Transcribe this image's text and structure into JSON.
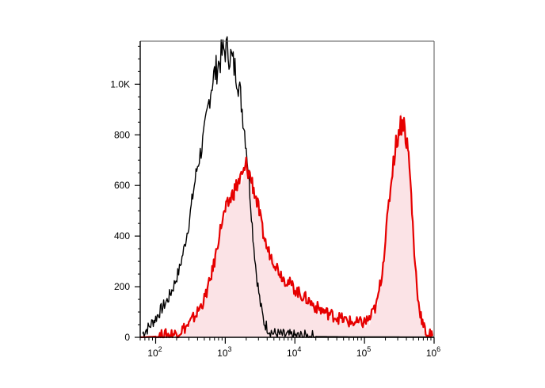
{
  "chart_data": {
    "type": "area",
    "title": "",
    "xlabel": "",
    "ylabel": "",
    "x_scale": "log",
    "xlim": [
      60,
      1000000
    ],
    "ylim": [
      0,
      1170
    ],
    "grid": false,
    "legend": "none",
    "y_ticks": [
      {
        "value": 0,
        "label": "0"
      },
      {
        "value": 200,
        "label": "200"
      },
      {
        "value": 400,
        "label": "400"
      },
      {
        "value": 600,
        "label": "600"
      },
      {
        "value": 800,
        "label": "800"
      },
      {
        "value": 1000,
        "label": "1.0K"
      }
    ],
    "x_ticks": [
      {
        "value": 100,
        "base": "10",
        "exp": "2"
      },
      {
        "value": 1000,
        "base": "10",
        "exp": "3"
      },
      {
        "value": 10000,
        "base": "10",
        "exp": "4"
      },
      {
        "value": 100000,
        "base": "10",
        "exp": "5"
      },
      {
        "value": 1000000,
        "base": "10",
        "exp": "6"
      }
    ],
    "series": [
      {
        "color": "#000000",
        "fill": "none",
        "points": [
          [
            65,
            15
          ],
          [
            70,
            25
          ],
          [
            80,
            40
          ],
          [
            90,
            60
          ],
          [
            100,
            75
          ],
          [
            120,
            110
          ],
          [
            150,
            150
          ],
          [
            180,
            200
          ],
          [
            220,
            270
          ],
          [
            260,
            360
          ],
          [
            300,
            450
          ],
          [
            350,
            580
          ],
          [
            400,
            680
          ],
          [
            450,
            740
          ],
          [
            500,
            800
          ],
          [
            550,
            880
          ],
          [
            600,
            960
          ],
          [
            650,
            1010
          ],
          [
            700,
            1040
          ],
          [
            800,
            1080
          ],
          [
            900,
            1120
          ],
          [
            1000,
            1140
          ],
          [
            1100,
            1130
          ],
          [
            1200,
            1110
          ],
          [
            1300,
            1080
          ],
          [
            1500,
            1030
          ],
          [
            1700,
            930
          ],
          [
            2000,
            760
          ],
          [
            2200,
            620
          ],
          [
            2500,
            400
          ],
          [
            2800,
            250
          ],
          [
            3200,
            130
          ],
          [
            3600,
            60
          ],
          [
            4200,
            30
          ],
          [
            5000,
            15
          ],
          [
            7000,
            8
          ],
          [
            10000,
            5
          ],
          [
            20000,
            3
          ],
          [
            60000,
            2
          ],
          [
            1000000,
            1
          ]
        ]
      },
      {
        "color": "#e60000",
        "fill": "#fbe3e6",
        "points": [
          [
            60,
            0
          ],
          [
            100,
            3
          ],
          [
            200,
            15
          ],
          [
            300,
            50
          ],
          [
            400,
            100
          ],
          [
            500,
            150
          ],
          [
            600,
            220
          ],
          [
            700,
            300
          ],
          [
            800,
            390
          ],
          [
            900,
            460
          ],
          [
            1000,
            500
          ],
          [
            1200,
            550
          ],
          [
            1400,
            590
          ],
          [
            1600,
            620
          ],
          [
            1800,
            640
          ],
          [
            2000,
            680
          ],
          [
            2200,
            650
          ],
          [
            2500,
            600
          ],
          [
            3000,
            510
          ],
          [
            3500,
            410
          ],
          [
            4000,
            350
          ],
          [
            5000,
            300
          ],
          [
            6000,
            260
          ],
          [
            7000,
            230
          ],
          [
            8000,
            220
          ],
          [
            10000,
            190
          ],
          [
            12000,
            170
          ],
          [
            15000,
            150
          ],
          [
            20000,
            120
          ],
          [
            25000,
            105
          ],
          [
            30000,
            95
          ],
          [
            40000,
            80
          ],
          [
            50000,
            70
          ],
          [
            60000,
            62
          ],
          [
            80000,
            55
          ],
          [
            100000,
            60
          ],
          [
            120000,
            75
          ],
          [
            150000,
            130
          ],
          [
            180000,
            260
          ],
          [
            200000,
            390
          ],
          [
            230000,
            560
          ],
          [
            260000,
            700
          ],
          [
            300000,
            800
          ],
          [
            330000,
            840
          ],
          [
            360000,
            860
          ],
          [
            400000,
            780
          ],
          [
            430000,
            720
          ],
          [
            470000,
            560
          ],
          [
            520000,
            330
          ],
          [
            600000,
            130
          ],
          [
            700000,
            40
          ],
          [
            800000,
            15
          ],
          [
            950000,
            5
          ]
        ]
      }
    ]
  }
}
